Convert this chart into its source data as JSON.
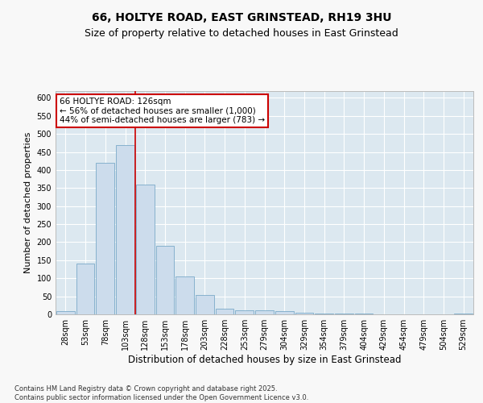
{
  "title_line1": "66, HOLTYE ROAD, EAST GRINSTEAD, RH19 3HU",
  "title_line2": "Size of property relative to detached houses in East Grinstead",
  "xlabel": "Distribution of detached houses by size in East Grinstead",
  "ylabel": "Number of detached properties",
  "bar_color": "#ccdcec",
  "bar_edge_color": "#7aaac8",
  "background_color": "#dce8f0",
  "grid_color": "#ffffff",
  "vline_color": "#cc0000",
  "annotation_text": "66 HOLTYE ROAD: 126sqm\n← 56% of detached houses are smaller (1,000)\n44% of semi-detached houses are larger (783) →",
  "annotation_box_color": "#cc0000",
  "categories": [
    "28sqm",
    "53sqm",
    "78sqm",
    "103sqm",
    "128sqm",
    "153sqm",
    "178sqm",
    "203sqm",
    "228sqm",
    "253sqm",
    "279sqm",
    "304sqm",
    "329sqm",
    "354sqm",
    "379sqm",
    "404sqm",
    "429sqm",
    "454sqm",
    "479sqm",
    "504sqm",
    "529sqm"
  ],
  "values": [
    8,
    140,
    420,
    470,
    360,
    190,
    105,
    53,
    15,
    12,
    12,
    9,
    4,
    3,
    2,
    2,
    1,
    1,
    1,
    1,
    3
  ],
  "ylim": [
    0,
    620
  ],
  "yticks": [
    0,
    50,
    100,
    150,
    200,
    250,
    300,
    350,
    400,
    450,
    500,
    550,
    600
  ],
  "footer_text": "Contains HM Land Registry data © Crown copyright and database right 2025.\nContains public sector information licensed under the Open Government Licence v3.0.",
  "title_fontsize": 10,
  "subtitle_fontsize": 9,
  "tick_fontsize": 7,
  "xlabel_fontsize": 8.5,
  "ylabel_fontsize": 8,
  "fig_bg": "#f8f8f8"
}
